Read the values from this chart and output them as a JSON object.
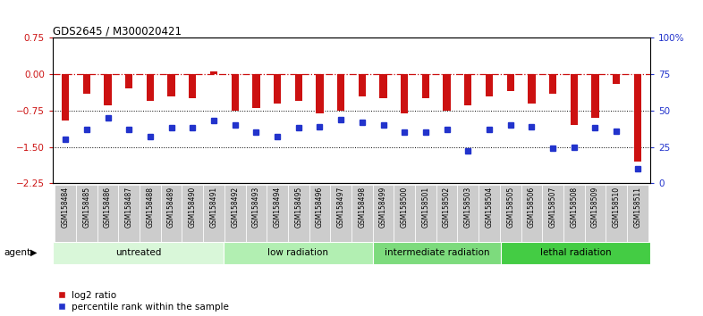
{
  "title": "GDS2645 / M300020421",
  "samples": [
    "GSM158484",
    "GSM158485",
    "GSM158486",
    "GSM158487",
    "GSM158488",
    "GSM158489",
    "GSM158490",
    "GSM158491",
    "GSM158492",
    "GSM158493",
    "GSM158494",
    "GSM158495",
    "GSM158496",
    "GSM158497",
    "GSM158498",
    "GSM158499",
    "GSM158500",
    "GSM158501",
    "GSM158502",
    "GSM158503",
    "GSM158504",
    "GSM158505",
    "GSM158506",
    "GSM158507",
    "GSM158508",
    "GSM158509",
    "GSM158510",
    "GSM158511"
  ],
  "log2_ratios": [
    -0.95,
    -0.4,
    -0.65,
    -0.3,
    -0.55,
    -0.45,
    -0.5,
    0.05,
    -0.75,
    -0.7,
    -0.6,
    -0.55,
    -0.8,
    -0.75,
    -0.45,
    -0.5,
    -0.8,
    -0.5,
    -0.75,
    -0.65,
    -0.45,
    -0.35,
    -0.6,
    -0.4,
    -1.05,
    -0.9,
    -0.2,
    -1.8
  ],
  "percentile_ranks": [
    30,
    37,
    45,
    37,
    32,
    38,
    38,
    43,
    40,
    35,
    32,
    38,
    39,
    44,
    42,
    40,
    35,
    35,
    37,
    22,
    37,
    40,
    39,
    24,
    25,
    38,
    36,
    10
  ],
  "groups": [
    {
      "label": "untreated",
      "start": 0,
      "end": 8,
      "color": "#d9f7d9"
    },
    {
      "label": "low radiation",
      "start": 8,
      "end": 15,
      "color": "#b2efb2"
    },
    {
      "label": "intermediate radiation",
      "start": 15,
      "end": 21,
      "color": "#7ddb7d"
    },
    {
      "label": "lethal radiation",
      "start": 21,
      "end": 28,
      "color": "#44cc44"
    }
  ],
  "ylim_left": [
    -2.25,
    0.75
  ],
  "ylim_right": [
    0,
    100
  ],
  "yticks_left": [
    0.75,
    0,
    -0.75,
    -1.5,
    -2.25
  ],
  "yticks_right": [
    100,
    75,
    50,
    25,
    0
  ],
  "bar_color": "#cc1111",
  "dot_color": "#2233cc",
  "dotted_lines": [
    -0.75,
    -1.5
  ],
  "background_color": "#ffffff",
  "xtick_bg": "#cccccc",
  "bar_width": 0.35
}
